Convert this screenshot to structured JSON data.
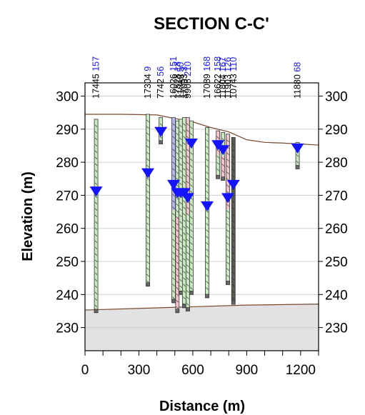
{
  "title": "SECTION C-C'",
  "xlabel": "Distance (m)",
  "ylabel": "Elevation (m)",
  "colors": {
    "ground": "#7a4a2a",
    "bedrock_fill": "#e2e2e2",
    "water_marker": "#1414ff",
    "hole_number": "#1a1aff",
    "sand_green": "#c9e9c0",
    "silt_pink": "#f2c2c8",
    "clay_blue": "#b8b8f0",
    "rock_dark": "#5a5a50"
  },
  "chart_data": {
    "type": "scatter",
    "xlim": [
      0,
      1300
    ],
    "ylim": [
      223,
      304
    ],
    "xticks": [
      0,
      300,
      600,
      900,
      1200
    ],
    "yticks": [
      230,
      240,
      250,
      260,
      270,
      280,
      290,
      300
    ],
    "ground_surface": [
      [
        0,
        294.5
      ],
      [
        200,
        294.5
      ],
      [
        400,
        294.3
      ],
      [
        500,
        293.2
      ],
      [
        600,
        292.2
      ],
      [
        700,
        290.5
      ],
      [
        800,
        289.2
      ],
      [
        900,
        286.8
      ],
      [
        1000,
        286
      ],
      [
        1100,
        285.8
      ],
      [
        1300,
        285.2
      ]
    ],
    "bedrock_surface": [
      [
        0,
        235.3
      ],
      [
        300,
        235.8
      ],
      [
        600,
        236.3
      ],
      [
        900,
        236.8
      ],
      [
        1300,
        237.1
      ]
    ],
    "boreholes": [
      {
        "id": "17445",
        "num": "157",
        "x": 62,
        "top": 293,
        "bottom": 234.5,
        "water": 271,
        "layers": [
          "sand"
        ]
      },
      {
        "id": "17304",
        "num": "9",
        "x": 350,
        "top": 294.5,
        "bottom": 242.5,
        "water": 276.5,
        "layers": [
          "sand"
        ]
      },
      {
        "id": "7742",
        "num": "56",
        "x": 422,
        "top": 293.5,
        "bottom": 285.5,
        "water": 289,
        "layers": [
          "sand"
        ]
      },
      {
        "id": "16026",
        "num": "151",
        "x": 493,
        "top": 293.5,
        "bottom": 237.5,
        "water": 273,
        "layers": [
          "clay",
          "sand"
        ]
      },
      {
        "id": "17528",
        "num": "18",
        "x": 514,
        "top": 292.5,
        "bottom": 234.5,
        "water": 270.5,
        "layers": [
          "sand",
          "silt"
        ]
      },
      {
        "id": "11049",
        "num": "50",
        "x": 533,
        "top": 293,
        "bottom": 240,
        "water": 270.5,
        "layers": [
          "sand"
        ]
      },
      {
        "id": "17093",
        "num": "3",
        "x": 552,
        "top": 293.5,
        "bottom": 236,
        "water": 270.5,
        "layers": [
          "sand"
        ]
      },
      {
        "id": "9908",
        "num": "210",
        "x": 572,
        "top": 293.5,
        "bottom": 235,
        "water": 269,
        "layers": [
          "silt",
          "sand"
        ]
      },
      {
        "id": "",
        "num": "",
        "x": 592,
        "top": 292.5,
        "bottom": 240,
        "water": 285.5,
        "layers": [
          "sand"
        ]
      },
      {
        "id": "17089",
        "num": "168",
        "x": 680,
        "top": 290.5,
        "bottom": 239,
        "water": 266.5,
        "layers": [
          "sand"
        ]
      },
      {
        "id": "16622",
        "num": "158",
        "x": 740,
        "top": 289.5,
        "bottom": 275,
        "water": 285,
        "layers": [
          "silt",
          "sand"
        ]
      },
      {
        "id": "11804",
        "num": "167",
        "x": 768,
        "top": 289,
        "bottom": 274.5,
        "water": 283.5,
        "layers": [
          "sand",
          "silt"
        ]
      },
      {
        "id": "11903",
        "num": "126",
        "x": 795,
        "top": 288.5,
        "bottom": 243,
        "water": 269,
        "layers": [
          "silt",
          "sand"
        ]
      },
      {
        "id": "10743",
        "num": "110",
        "x": 826,
        "top": 287.5,
        "bottom": 237,
        "water": 273,
        "layers": [
          "rock"
        ]
      },
      {
        "id": "11880",
        "num": "68",
        "x": 1183,
        "top": 286,
        "bottom": 278,
        "water": 284,
        "layers": [
          "sand"
        ]
      }
    ]
  }
}
